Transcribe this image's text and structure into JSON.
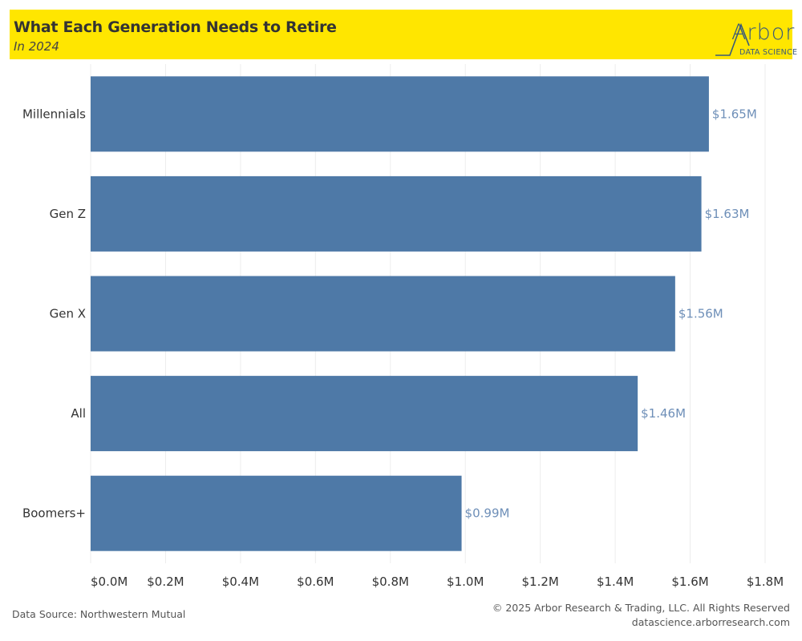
{
  "header": {
    "title": "What Each Generation Needs to Retire",
    "subtitle": "In 2024",
    "background_color": "#FFE600"
  },
  "logo": {
    "wordmark": "Arbor",
    "tagline": "DATA SCIENCE",
    "color": "#3a5a78"
  },
  "chart_data": {
    "type": "bar",
    "orientation": "horizontal",
    "categories": [
      "Millennials",
      "Gen Z",
      "Gen X",
      "All",
      "Boomers+"
    ],
    "values": [
      1.65,
      1.63,
      1.56,
      1.46,
      0.99
    ],
    "value_labels": [
      "$1.65M",
      "$1.63M",
      "$1.56M",
      "$1.46M",
      "$0.99M"
    ],
    "x_ticks": [
      0,
      0.2,
      0.4,
      0.6,
      0.8,
      1.0,
      1.2,
      1.4,
      1.6,
      1.8
    ],
    "x_tick_labels": [
      "$0.0M",
      "$0.2M",
      "$0.4M",
      "$0.6M",
      "$0.8M",
      "$1.0M",
      "$1.2M",
      "$1.4M",
      "$1.6M",
      "$1.8M"
    ],
    "xlim": [
      0,
      1.8
    ],
    "xlabel": "",
    "ylabel": "",
    "grid": "vertical",
    "legend": "none",
    "bar_color": "#4E79A7",
    "label_color": "#6e8fb8"
  },
  "footer": {
    "source": "Data Source: Northwestern Mutual",
    "copyright": "© 2025 Arbor Research & Trading, LLC. All Rights Reserved",
    "website": "datascience.arborresearch.com"
  }
}
